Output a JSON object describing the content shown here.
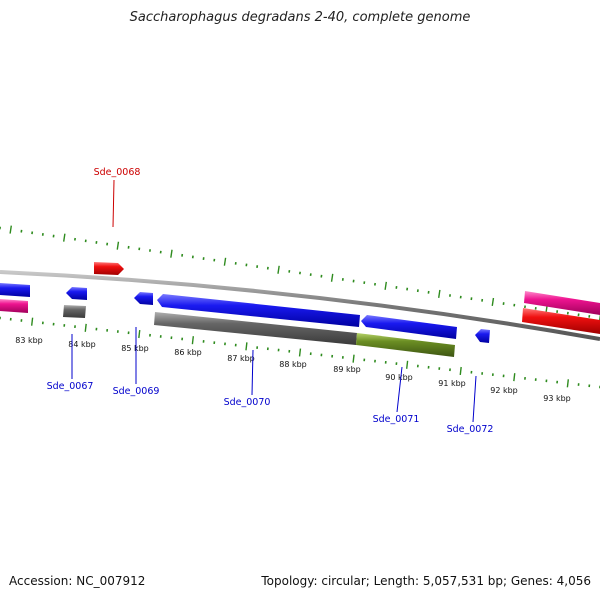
{
  "title": "Saccharophagus degradans 2-40, complete genome",
  "footer": {
    "accession": "Accession: NC_007912",
    "summary": "Topology: circular; Length: 5,057,531 bp; Genes: 4,056"
  },
  "colors": {
    "backbone": "#888888",
    "tick": "#2e8b1e",
    "label_red": "#cc0000",
    "label_blue": "#0000cc",
    "blue": "#1010e8",
    "red": "#ee1010",
    "pink": "#ee1490",
    "gray": "#666666",
    "olive": "#6b8e23"
  },
  "ruler": {
    "tick_labels": [
      "83 kbp",
      "84 kbp",
      "85 kbp",
      "86 kbp",
      "87 kbp",
      "88 kbp",
      "89 kbp",
      "90 kbp",
      "91 kbp",
      "92 kbp",
      "93 kbp"
    ]
  },
  "gene_labels": [
    {
      "text": "Sde_0068",
      "color": "red"
    },
    {
      "text": "Sde_0067",
      "color": "blue"
    },
    {
      "text": "Sde_0069",
      "color": "blue"
    },
    {
      "text": "Sde_0070",
      "color": "blue"
    },
    {
      "text": "Sde_0071",
      "color": "blue"
    },
    {
      "text": "Sde_0072",
      "color": "blue"
    }
  ]
}
